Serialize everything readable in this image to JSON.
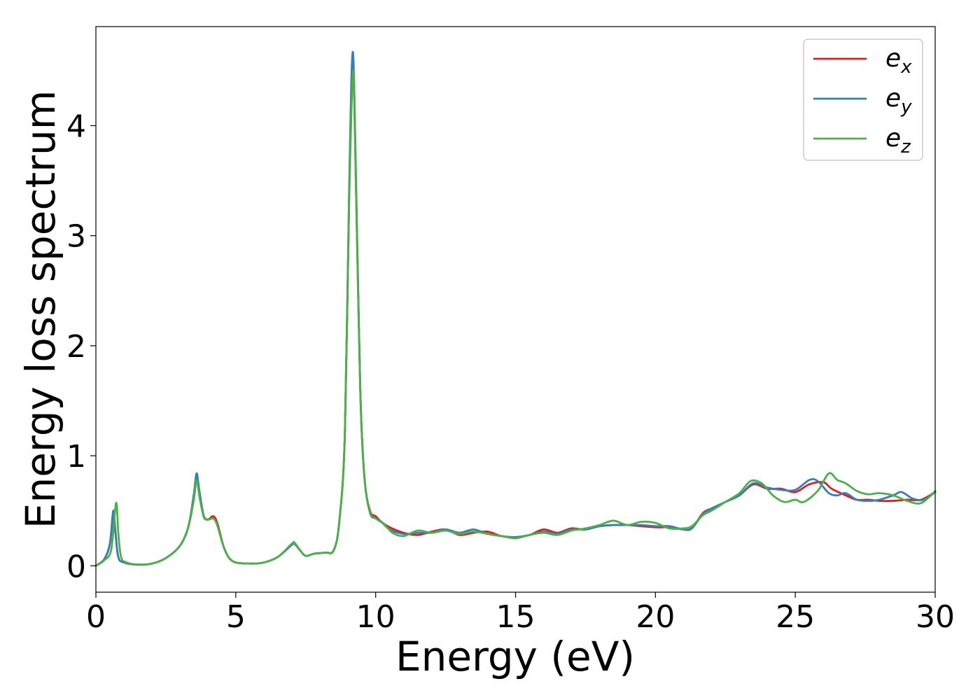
{
  "chart_data": {
    "type": "line",
    "xlabel": "Energy (eV)",
    "ylabel": "Energy loss spectrum",
    "xlim": [
      0,
      30
    ],
    "ylim": [
      -0.24,
      4.9
    ],
    "xticks": [
      0,
      5,
      10,
      15,
      20,
      25,
      30
    ],
    "yticks": [
      0,
      1,
      2,
      3,
      4
    ],
    "grid": false,
    "legend_position": "top-right",
    "series": [
      {
        "name": "e_x",
        "label_base": "e",
        "label_sub": "x",
        "color": "#e41a1c",
        "points": [
          [
            0,
            0.0
          ],
          [
            0.3,
            0.06
          ],
          [
            0.5,
            0.2
          ],
          [
            0.62,
            0.47
          ],
          [
            0.7,
            0.3
          ],
          [
            0.8,
            0.08
          ],
          [
            1.0,
            0.03
          ],
          [
            1.5,
            0.01
          ],
          [
            2.0,
            0.02
          ],
          [
            2.5,
            0.07
          ],
          [
            3.0,
            0.18
          ],
          [
            3.3,
            0.35
          ],
          [
            3.5,
            0.62
          ],
          [
            3.6,
            0.8
          ],
          [
            3.7,
            0.65
          ],
          [
            3.85,
            0.45
          ],
          [
            4.0,
            0.42
          ],
          [
            4.2,
            0.45
          ],
          [
            4.35,
            0.38
          ],
          [
            4.6,
            0.15
          ],
          [
            4.9,
            0.04
          ],
          [
            5.5,
            0.02
          ],
          [
            6.0,
            0.03
          ],
          [
            6.5,
            0.08
          ],
          [
            7.0,
            0.19
          ],
          [
            7.1,
            0.2
          ],
          [
            7.3,
            0.14
          ],
          [
            7.5,
            0.09
          ],
          [
            7.8,
            0.11
          ],
          [
            8.2,
            0.12
          ],
          [
            8.5,
            0.14
          ],
          [
            8.7,
            0.4
          ],
          [
            8.9,
            1.2
          ],
          [
            9.05,
            3.3
          ],
          [
            9.18,
            4.6
          ],
          [
            9.3,
            3.4
          ],
          [
            9.45,
            1.6
          ],
          [
            9.6,
            0.8
          ],
          [
            9.8,
            0.5
          ],
          [
            10.0,
            0.45
          ],
          [
            10.2,
            0.4
          ],
          [
            10.5,
            0.35
          ],
          [
            11.0,
            0.3
          ],
          [
            11.5,
            0.28
          ],
          [
            12.0,
            0.31
          ],
          [
            12.5,
            0.33
          ],
          [
            13.0,
            0.28
          ],
          [
            13.5,
            0.3
          ],
          [
            14.0,
            0.31
          ],
          [
            14.5,
            0.27
          ],
          [
            15.0,
            0.26
          ],
          [
            15.5,
            0.28
          ],
          [
            16.0,
            0.33
          ],
          [
            16.5,
            0.3
          ],
          [
            17.0,
            0.34
          ],
          [
            17.5,
            0.33
          ],
          [
            18.0,
            0.36
          ],
          [
            18.5,
            0.37
          ],
          [
            19.0,
            0.37
          ],
          [
            19.5,
            0.36
          ],
          [
            20.0,
            0.35
          ],
          [
            20.5,
            0.35
          ],
          [
            21.0,
            0.33
          ],
          [
            21.3,
            0.34
          ],
          [
            21.7,
            0.48
          ],
          [
            22.0,
            0.52
          ],
          [
            22.5,
            0.58
          ],
          [
            23.0,
            0.64
          ],
          [
            23.5,
            0.74
          ],
          [
            24.0,
            0.7
          ],
          [
            24.5,
            0.7
          ],
          [
            25.0,
            0.67
          ],
          [
            25.5,
            0.74
          ],
          [
            26.0,
            0.76
          ],
          [
            26.3,
            0.7
          ],
          [
            26.8,
            0.64
          ],
          [
            27.2,
            0.6
          ],
          [
            27.6,
            0.6
          ],
          [
            28.0,
            0.59
          ],
          [
            28.5,
            0.59
          ],
          [
            29.0,
            0.6
          ],
          [
            29.5,
            0.6
          ],
          [
            30.0,
            0.67
          ]
        ]
      },
      {
        "name": "e_y",
        "label_base": "e",
        "label_sub": "y",
        "color": "#377eb8",
        "points": [
          [
            0,
            0.0
          ],
          [
            0.3,
            0.06
          ],
          [
            0.5,
            0.2
          ],
          [
            0.62,
            0.5
          ],
          [
            0.7,
            0.3
          ],
          [
            0.8,
            0.08
          ],
          [
            1.0,
            0.03
          ],
          [
            1.5,
            0.01
          ],
          [
            2.0,
            0.02
          ],
          [
            2.5,
            0.07
          ],
          [
            3.0,
            0.18
          ],
          [
            3.3,
            0.35
          ],
          [
            3.5,
            0.65
          ],
          [
            3.6,
            0.84
          ],
          [
            3.7,
            0.68
          ],
          [
            3.85,
            0.46
          ],
          [
            4.0,
            0.42
          ],
          [
            4.2,
            0.43
          ],
          [
            4.35,
            0.36
          ],
          [
            4.6,
            0.15
          ],
          [
            4.9,
            0.04
          ],
          [
            5.5,
            0.02
          ],
          [
            6.0,
            0.03
          ],
          [
            6.5,
            0.08
          ],
          [
            7.0,
            0.19
          ],
          [
            7.1,
            0.2
          ],
          [
            7.3,
            0.14
          ],
          [
            7.5,
            0.09
          ],
          [
            7.8,
            0.11
          ],
          [
            8.2,
            0.12
          ],
          [
            8.5,
            0.14
          ],
          [
            8.7,
            0.4
          ],
          [
            8.9,
            1.2
          ],
          [
            9.05,
            3.4
          ],
          [
            9.18,
            4.67
          ],
          [
            9.3,
            3.5
          ],
          [
            9.45,
            1.6
          ],
          [
            9.6,
            0.8
          ],
          [
            9.8,
            0.48
          ],
          [
            10.0,
            0.43
          ],
          [
            10.2,
            0.4
          ],
          [
            10.5,
            0.33
          ],
          [
            11.0,
            0.29
          ],
          [
            11.5,
            0.3
          ],
          [
            12.0,
            0.3
          ],
          [
            12.5,
            0.33
          ],
          [
            13.0,
            0.3
          ],
          [
            13.5,
            0.33
          ],
          [
            14.0,
            0.29
          ],
          [
            14.5,
            0.27
          ],
          [
            15.0,
            0.26
          ],
          [
            15.5,
            0.28
          ],
          [
            16.0,
            0.31
          ],
          [
            16.5,
            0.29
          ],
          [
            17.0,
            0.33
          ],
          [
            17.5,
            0.33
          ],
          [
            18.0,
            0.36
          ],
          [
            18.5,
            0.37
          ],
          [
            19.0,
            0.37
          ],
          [
            19.5,
            0.37
          ],
          [
            20.0,
            0.36
          ],
          [
            20.5,
            0.36
          ],
          [
            21.0,
            0.33
          ],
          [
            21.3,
            0.34
          ],
          [
            21.7,
            0.47
          ],
          [
            22.0,
            0.52
          ],
          [
            22.5,
            0.58
          ],
          [
            23.0,
            0.64
          ],
          [
            23.5,
            0.75
          ],
          [
            24.0,
            0.71
          ],
          [
            24.5,
            0.69
          ],
          [
            25.0,
            0.69
          ],
          [
            25.5,
            0.78
          ],
          [
            25.8,
            0.77
          ],
          [
            26.2,
            0.66
          ],
          [
            26.5,
            0.64
          ],
          [
            26.8,
            0.66
          ],
          [
            27.2,
            0.6
          ],
          [
            27.6,
            0.59
          ],
          [
            28.0,
            0.6
          ],
          [
            28.5,
            0.64
          ],
          [
            28.8,
            0.67
          ],
          [
            29.2,
            0.61
          ],
          [
            29.6,
            0.6
          ],
          [
            30.0,
            0.67
          ]
        ]
      },
      {
        "name": "e_z",
        "label_base": "e",
        "label_sub": "z",
        "color": "#4daf4a",
        "points": [
          [
            0,
            0.0
          ],
          [
            0.3,
            0.05
          ],
          [
            0.55,
            0.15
          ],
          [
            0.72,
            0.57
          ],
          [
            0.8,
            0.3
          ],
          [
            0.9,
            0.08
          ],
          [
            1.1,
            0.03
          ],
          [
            1.5,
            0.01
          ],
          [
            2.0,
            0.02
          ],
          [
            2.5,
            0.07
          ],
          [
            3.0,
            0.18
          ],
          [
            3.3,
            0.35
          ],
          [
            3.5,
            0.6
          ],
          [
            3.6,
            0.78
          ],
          [
            3.7,
            0.63
          ],
          [
            3.85,
            0.45
          ],
          [
            4.0,
            0.42
          ],
          [
            4.2,
            0.43
          ],
          [
            4.35,
            0.36
          ],
          [
            4.6,
            0.15
          ],
          [
            4.9,
            0.04
          ],
          [
            5.5,
            0.02
          ],
          [
            6.0,
            0.03
          ],
          [
            6.5,
            0.08
          ],
          [
            7.0,
            0.2
          ],
          [
            7.1,
            0.21
          ],
          [
            7.3,
            0.14
          ],
          [
            7.5,
            0.09
          ],
          [
            7.8,
            0.11
          ],
          [
            8.2,
            0.12
          ],
          [
            8.5,
            0.14
          ],
          [
            8.7,
            0.4
          ],
          [
            8.9,
            1.2
          ],
          [
            9.05,
            3.3
          ],
          [
            9.2,
            4.5
          ],
          [
            9.3,
            3.4
          ],
          [
            9.45,
            1.6
          ],
          [
            9.6,
            0.8
          ],
          [
            9.8,
            0.49
          ],
          [
            10.0,
            0.43
          ],
          [
            10.3,
            0.38
          ],
          [
            10.6,
            0.3
          ],
          [
            11.0,
            0.27
          ],
          [
            11.5,
            0.32
          ],
          [
            12.0,
            0.3
          ],
          [
            12.5,
            0.32
          ],
          [
            13.0,
            0.29
          ],
          [
            13.5,
            0.31
          ],
          [
            14.0,
            0.29
          ],
          [
            14.5,
            0.27
          ],
          [
            15.0,
            0.25
          ],
          [
            15.5,
            0.28
          ],
          [
            16.0,
            0.3
          ],
          [
            16.5,
            0.28
          ],
          [
            17.0,
            0.32
          ],
          [
            17.5,
            0.34
          ],
          [
            18.0,
            0.37
          ],
          [
            18.5,
            0.41
          ],
          [
            19.0,
            0.37
          ],
          [
            19.5,
            0.4
          ],
          [
            20.0,
            0.39
          ],
          [
            20.5,
            0.34
          ],
          [
            21.0,
            0.34
          ],
          [
            21.3,
            0.36
          ],
          [
            21.7,
            0.46
          ],
          [
            22.0,
            0.5
          ],
          [
            22.5,
            0.58
          ],
          [
            23.0,
            0.66
          ],
          [
            23.4,
            0.77
          ],
          [
            23.8,
            0.75
          ],
          [
            24.2,
            0.64
          ],
          [
            24.6,
            0.58
          ],
          [
            25.0,
            0.6
          ],
          [
            25.3,
            0.58
          ],
          [
            25.8,
            0.68
          ],
          [
            26.2,
            0.84
          ],
          [
            26.5,
            0.78
          ],
          [
            26.8,
            0.75
          ],
          [
            27.2,
            0.68
          ],
          [
            27.6,
            0.65
          ],
          [
            28.0,
            0.66
          ],
          [
            28.5,
            0.64
          ],
          [
            29.0,
            0.59
          ],
          [
            29.5,
            0.57
          ],
          [
            30.0,
            0.68
          ]
        ]
      }
    ]
  }
}
